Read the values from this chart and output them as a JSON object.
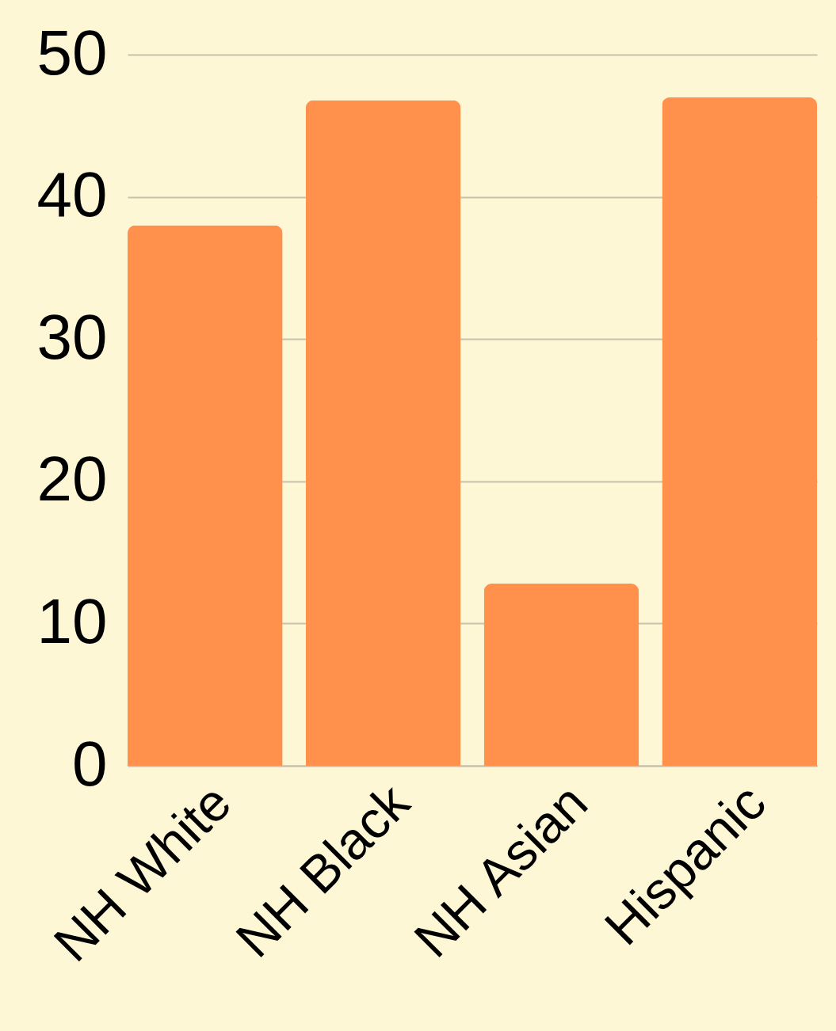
{
  "chart_data": {
    "type": "bar",
    "categories": [
      "NH White",
      "NH Black",
      "NH Asian",
      "Hispanic"
    ],
    "values": [
      38,
      46.8,
      12.8,
      47
    ],
    "color": "#ff914d",
    "ylim": [
      0,
      50
    ],
    "yticks": [
      0,
      10,
      20,
      30,
      40,
      50
    ],
    "grid": "y"
  }
}
